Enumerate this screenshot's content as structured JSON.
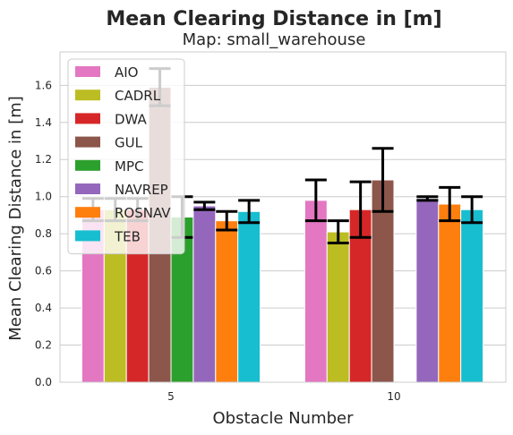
{
  "chart_data": {
    "type": "bar",
    "title": "Mean Clearing Distance in [m]",
    "subtitle": "Map: small_warehouse",
    "xlabel": "Obstacle Number",
    "ylabel": "Mean Clearing Distance in [m]",
    "categories": [
      "5",
      "10"
    ],
    "ylim": [
      0,
      1.78
    ],
    "yticks": [
      "0.0",
      "0.2",
      "0.4",
      "0.6",
      "0.8",
      "1.0",
      "1.2",
      "1.4",
      "1.6"
    ],
    "grid": "horizontal",
    "legend_position": "top-left",
    "series": [
      {
        "name": "AIO",
        "color": "#e377c2",
        "values": [
          0.93,
          0.98
        ],
        "error": [
          0.06,
          0.11
        ]
      },
      {
        "name": "CADRL",
        "color": "#bcbd22",
        "values": [
          0.93,
          0.81
        ],
        "error": [
          0.06,
          0.06
        ]
      },
      {
        "name": "DWA",
        "color": "#d62728",
        "values": [
          0.93,
          0.93
        ],
        "error": [
          0.06,
          0.15
        ]
      },
      {
        "name": "GUL",
        "color": "#8c564b",
        "values": [
          1.59,
          1.09
        ],
        "error": [
          0.1,
          0.17
        ]
      },
      {
        "name": "MPC",
        "color": "#2ca02c",
        "values": [
          0.89,
          null
        ],
        "error": [
          0.11,
          null
        ]
      },
      {
        "name": "NAVREP",
        "color": "#9467bd",
        "values": [
          0.95,
          0.99
        ],
        "error": [
          0.02,
          0.01
        ]
      },
      {
        "name": "ROSNAV",
        "color": "#ff7f0e",
        "values": [
          0.87,
          0.96
        ],
        "error": [
          0.05,
          0.09
        ]
      },
      {
        "name": "TEB",
        "color": "#17becf",
        "values": [
          0.92,
          0.93
        ],
        "error": [
          0.06,
          0.07
        ]
      }
    ]
  }
}
